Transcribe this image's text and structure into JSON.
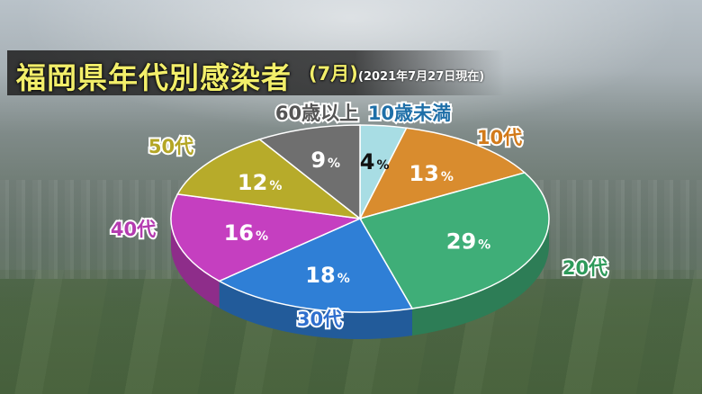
{
  "header": {
    "title": "福岡県年代別感染者",
    "subtitle": "(7月)",
    "date_note": "(2021年7月27日現在)"
  },
  "chart_data": {
    "type": "pie",
    "style": "3d",
    "title": "福岡県年代別感染者(7月)",
    "categories": [
      "10歳未満",
      "10代",
      "20代",
      "30代",
      "40代",
      "50代",
      "60歳以上"
    ],
    "values": [
      4,
      13,
      29,
      18,
      16,
      12,
      9
    ],
    "unit": "%",
    "colors": [
      "#a8dde4",
      "#d98c2e",
      "#3fae78",
      "#2f7fd6",
      "#c53fc0",
      "#b7ab2a",
      "#6f6f6f"
    ],
    "label_colors": [
      "#1e6fa8",
      "#d27a1a",
      "#2e9a5a",
      "#2f6fce",
      "#b43bb0",
      "#b4a626",
      "#555555"
    ]
  }
}
